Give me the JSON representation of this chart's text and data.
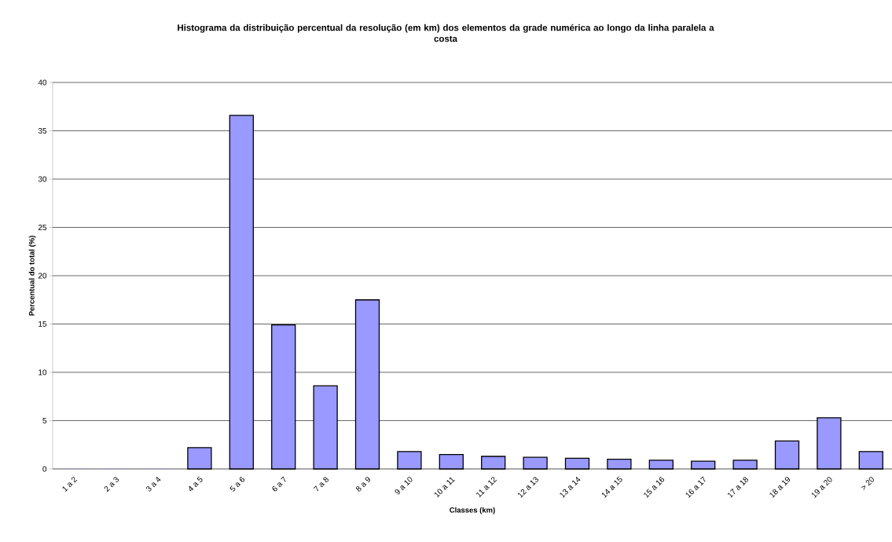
{
  "chart_data": {
    "type": "bar",
    "title": "Histograma da distribuição percentual da resolução (em km) dos elementos da grade numérica ao longo da linha paralela a costa",
    "xlabel": "Classes (km)",
    "ylabel": "Percentual do total (%)",
    "categories": [
      "1 a 2",
      "2 a 3",
      "3 a 4",
      "4 a 5",
      "5 a 6",
      "6 a 7",
      "7 a 8",
      "8 a 9",
      "9 a 10",
      "10 a 11",
      "11 a 12",
      "12 a 13",
      "13 a 14",
      "14 a 15",
      "15 a 16",
      "16 a 17",
      "17 a 18",
      "18 a 19",
      "19 a 20",
      "> 20"
    ],
    "values": [
      0,
      0,
      0,
      2.2,
      36.6,
      14.9,
      8.6,
      17.5,
      1.8,
      1.5,
      1.3,
      1.2,
      1.1,
      1.0,
      0.9,
      0.8,
      0.9,
      2.9,
      5.3,
      1.8
    ],
    "color": "#9999ff",
    "ylim": [
      0,
      40
    ],
    "yticks": [
      0,
      5,
      10,
      15,
      20,
      25,
      30,
      35,
      40
    ],
    "grid": "y"
  }
}
